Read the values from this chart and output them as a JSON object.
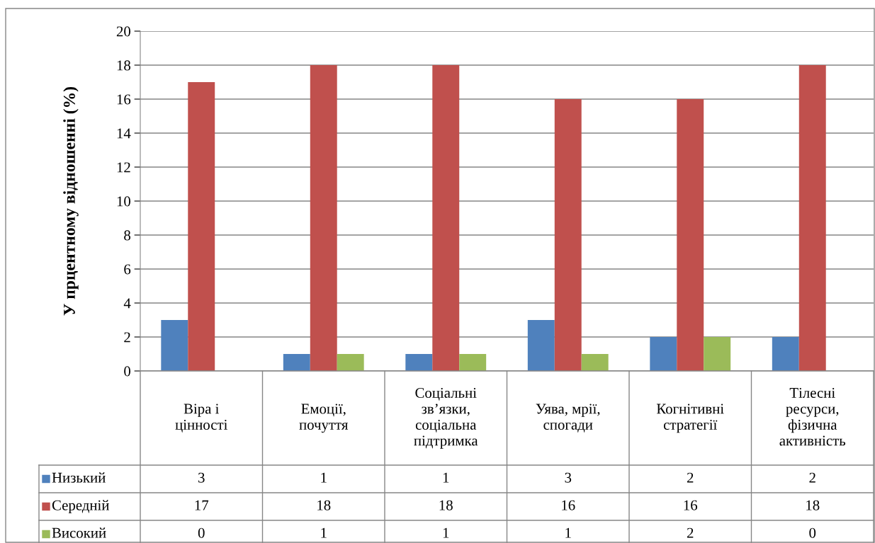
{
  "chart_data": {
    "type": "bar",
    "ylabel": "У прцентному відношенні (%)",
    "categories": [
      "Віра і цінності",
      "Емоції, почуття",
      "Соціальні зв’язки, соціальна підтримка",
      "Уява, мрії, спогади",
      "Когнітивні стратегії",
      "Тілесні ресурси, фізична активність"
    ],
    "series": [
      {
        "name": "Низький",
        "color": "#4f81bd",
        "values": [
          3,
          1,
          1,
          3,
          2,
          2
        ]
      },
      {
        "name": "Середній",
        "color": "#c0504d",
        "values": [
          17,
          18,
          18,
          16,
          16,
          18
        ]
      },
      {
        "name": "Високий",
        "color": "#9bbb59",
        "values": [
          0,
          1,
          1,
          1,
          2,
          0
        ]
      }
    ],
    "ylim": [
      0,
      20
    ],
    "yticks": [
      0,
      2,
      4,
      6,
      8,
      10,
      12,
      14,
      16,
      18,
      20
    ],
    "grid": "y",
    "data_labels": true,
    "legend": "bottom"
  }
}
